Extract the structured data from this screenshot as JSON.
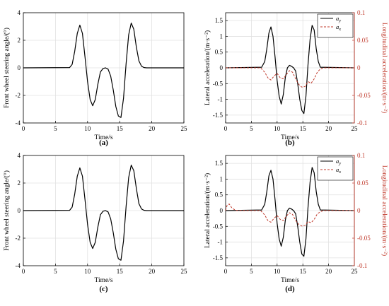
{
  "chart_data": [
    {
      "type": "line",
      "panel_label": "(a)",
      "xlabel": "Time/s",
      "ylabel": "Front wheel steering angle/(°)",
      "xlim": [
        0,
        25
      ],
      "ylim": [
        -4,
        4
      ],
      "xticks": [
        "0",
        "5",
        "10",
        "15",
        "20",
        "25"
      ],
      "yticks": [
        "-4",
        "-2",
        "0",
        "2",
        "4"
      ],
      "grid": true,
      "series": [
        {
          "color": "#000000",
          "x": [
            0,
            7.2,
            7.6,
            8.0,
            8.4,
            8.8,
            9.2,
            9.6,
            10.0,
            10.4,
            10.8,
            11.2,
            11.6,
            12.0,
            12.4,
            12.8,
            13.2,
            13.6,
            14.0,
            14.4,
            14.8,
            15.2,
            15.6,
            16.0,
            16.4,
            16.8,
            17.2,
            17.6,
            18.0,
            18.4,
            18.8,
            19.2,
            25
          ],
          "y": [
            0,
            0.02,
            0.25,
            1.2,
            2.5,
            3.1,
            2.5,
            0.8,
            -1.0,
            -2.3,
            -2.75,
            -2.3,
            -1.2,
            -0.3,
            -0.05,
            0,
            -0.1,
            -0.6,
            -1.6,
            -2.8,
            -3.5,
            -3.6,
            -2.2,
            0.3,
            2.4,
            3.25,
            2.8,
            1.5,
            0.5,
            0.12,
            0.02,
            0,
            0
          ]
        }
      ]
    },
    {
      "type": "line",
      "panel_label": "(b)",
      "xlabel": "Time/s",
      "ylabel": "Lateral acceleration/(m·s⁻²)",
      "y2label": "Longitudinal acceleration/(m·s⁻²)",
      "xlim": [
        0,
        25
      ],
      "ylim": [
        -1.75,
        1.75
      ],
      "y2lim": [
        -0.1,
        0.1
      ],
      "xticks": [
        "0",
        "5",
        "10",
        "15",
        "20",
        "25"
      ],
      "yticks": [
        "-1.5",
        "-1",
        "-0.5",
        "0",
        "0.5",
        "1",
        "1.5"
      ],
      "y2ticks": [
        "-0.1",
        "-0.05",
        "0",
        "0.05",
        "0.1"
      ],
      "grid": true,
      "legend": "top-right",
      "series": [
        {
          "name_main": "a",
          "name_sub": "y",
          "color": "#000000",
          "style": "solid",
          "axis": "left",
          "x": [
            0,
            7.0,
            7.6,
            8.0,
            8.4,
            8.8,
            9.2,
            9.6,
            10.0,
            10.4,
            10.8,
            11.2,
            11.6,
            12.0,
            12.4,
            12.8,
            13.2,
            13.6,
            14.0,
            14.4,
            14.8,
            15.2,
            15.6,
            16.0,
            16.4,
            16.8,
            17.2,
            17.6,
            18.0,
            18.4,
            25
          ],
          "y": [
            0,
            0.02,
            0.2,
            0.6,
            1.1,
            1.3,
            1.0,
            0.35,
            -0.4,
            -0.9,
            -1.15,
            -0.85,
            -0.3,
            0.0,
            0.08,
            0.05,
            0.0,
            -0.1,
            -0.5,
            -1.0,
            -1.35,
            -1.45,
            -0.9,
            0.1,
            0.9,
            1.35,
            1.2,
            0.6,
            0.2,
            0.02,
            0
          ]
        },
        {
          "name_main": "a",
          "name_sub": "x",
          "color": "#c0392b",
          "style": "dashed",
          "axis": "right",
          "x": [
            0,
            6.8,
            7.6,
            8.2,
            8.8,
            9.4,
            10.0,
            10.6,
            11.2,
            11.8,
            12.4,
            13.0,
            13.6,
            14.2,
            14.8,
            15.4,
            16.0,
            16.6,
            17.2,
            17.8,
            18.4,
            19.0,
            25
          ],
          "y": [
            0,
            0,
            -0.008,
            -0.018,
            -0.022,
            -0.015,
            -0.01,
            -0.018,
            -0.02,
            -0.012,
            -0.005,
            -0.008,
            -0.02,
            -0.03,
            -0.035,
            -0.034,
            -0.025,
            -0.028,
            -0.02,
            -0.008,
            -0.002,
            0,
            0
          ]
        }
      ]
    },
    {
      "type": "line",
      "panel_label": "(c)",
      "xlabel": "Time/s",
      "ylabel": "Front wheel steering angle/(°)",
      "xlim": [
        0,
        25
      ],
      "ylim": [
        -4,
        4
      ],
      "xticks": [
        "0",
        "5",
        "10",
        "15",
        "20",
        "25"
      ],
      "yticks": [
        "-4",
        "-2",
        "0",
        "2",
        "4"
      ],
      "grid": true,
      "series": [
        {
          "color": "#000000",
          "x": [
            0,
            7.2,
            7.6,
            8.0,
            8.4,
            8.8,
            9.2,
            9.6,
            10.0,
            10.4,
            10.8,
            11.2,
            11.6,
            12.0,
            12.4,
            12.8,
            13.2,
            13.6,
            14.0,
            14.4,
            14.8,
            15.2,
            15.6,
            16.0,
            16.4,
            16.8,
            17.2,
            17.6,
            18.0,
            18.4,
            18.8,
            19.2,
            25
          ],
          "y": [
            0,
            0.02,
            0.25,
            1.2,
            2.5,
            3.1,
            2.5,
            0.8,
            -1.0,
            -2.3,
            -2.75,
            -2.3,
            -1.2,
            -0.3,
            -0.05,
            0,
            -0.1,
            -0.6,
            -1.6,
            -2.8,
            -3.5,
            -3.6,
            -2.2,
            0.3,
            2.4,
            3.3,
            2.9,
            1.6,
            0.5,
            0.12,
            0.02,
            0,
            0
          ]
        }
      ]
    },
    {
      "type": "line",
      "panel_label": "(d)",
      "xlabel": "Time/s",
      "ylabel": "Lateral acceleration/(m·s⁻²)",
      "y2label": "Longitudinal acceleration/(m·s⁻²)",
      "xlim": [
        0,
        25
      ],
      "ylim": [
        -1.75,
        1.75
      ],
      "y2lim": [
        -0.1,
        0.1
      ],
      "xticks": [
        "0",
        "5",
        "10",
        "15",
        "20",
        "25"
      ],
      "yticks": [
        "-1.5",
        "-1",
        "-0.5",
        "0",
        "0.5",
        "1",
        "1.5"
      ],
      "y2ticks": [
        "-0.1",
        "-0.05",
        "0",
        "0.05",
        "0.1"
      ],
      "grid": true,
      "legend": "top-right",
      "series": [
        {
          "name_main": "a",
          "name_sub": "y",
          "color": "#000000",
          "style": "solid",
          "axis": "left",
          "x": [
            0,
            7.0,
            7.6,
            8.0,
            8.4,
            8.8,
            9.2,
            9.6,
            10.0,
            10.4,
            10.8,
            11.2,
            11.6,
            12.0,
            12.4,
            12.8,
            13.2,
            13.6,
            14.0,
            14.4,
            14.8,
            15.2,
            15.6,
            16.0,
            16.4,
            16.8,
            17.2,
            17.6,
            18.0,
            18.4,
            25
          ],
          "y": [
            0,
            0.02,
            0.2,
            0.6,
            1.1,
            1.28,
            1.0,
            0.35,
            -0.4,
            -0.9,
            -1.13,
            -0.85,
            -0.3,
            0.0,
            0.08,
            0.05,
            0.0,
            -0.1,
            -0.5,
            -1.0,
            -1.38,
            -1.45,
            -0.9,
            0.1,
            0.9,
            1.37,
            1.2,
            0.6,
            0.2,
            0.02,
            0
          ]
        },
        {
          "name_main": "a",
          "name_sub": "x",
          "color": "#c0392b",
          "style": "dashed",
          "axis": "right",
          "x": [
            0,
            0.3,
            0.7,
            1.2,
            2.0,
            6.8,
            7.6,
            8.2,
            8.8,
            9.4,
            10.0,
            10.6,
            11.2,
            11.8,
            12.4,
            13.0,
            13.6,
            14.2,
            14.8,
            15.4,
            16.0,
            16.6,
            17.2,
            17.8,
            18.4,
            19.0,
            25
          ],
          "y": [
            0,
            0.01,
            0.012,
            0.005,
            0,
            0,
            -0.008,
            -0.018,
            -0.021,
            -0.014,
            -0.009,
            -0.016,
            -0.018,
            -0.01,
            -0.004,
            -0.007,
            -0.018,
            -0.025,
            -0.028,
            -0.027,
            -0.02,
            -0.022,
            -0.016,
            -0.006,
            -0.002,
            0,
            0
          ]
        }
      ]
    }
  ]
}
